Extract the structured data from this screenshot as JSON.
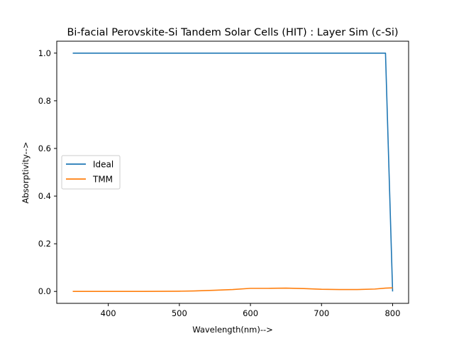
{
  "chart_data": {
    "type": "line",
    "title": "Bi-facial Perovskite-Si Tandem Solar Cells (HIT) : Layer Sim (c-Si)",
    "xlabel": "Wavelength(nm)-->",
    "ylabel": "Absorptivity-->",
    "xlim": [
      327.5,
      822.5
    ],
    "ylim": [
      -0.05,
      1.05
    ],
    "x_ticks": [
      400,
      500,
      600,
      700,
      800
    ],
    "x_tick_labels": [
      "400",
      "500",
      "600",
      "700",
      "800"
    ],
    "y_ticks": [
      0.0,
      0.2,
      0.4,
      0.6,
      0.8,
      1.0
    ],
    "y_tick_labels": [
      "0.0",
      "0.2",
      "0.4",
      "0.6",
      "0.8",
      "1.0"
    ],
    "grid": false,
    "legend_position": "center-left",
    "series": [
      {
        "name": "Ideal",
        "color": "#1f77b4",
        "x": [
          350,
          790,
          800
        ],
        "y": [
          1.0,
          1.0,
          0.0
        ]
      },
      {
        "name": "TMM",
        "color": "#ff7f0e",
        "x": [
          350,
          400,
          450,
          500,
          520,
          550,
          575,
          600,
          625,
          650,
          675,
          700,
          725,
          750,
          775,
          790,
          800
        ],
        "y": [
          0.0,
          0.0,
          0.0,
          0.001,
          0.002,
          0.005,
          0.008,
          0.013,
          0.013,
          0.014,
          0.012,
          0.009,
          0.008,
          0.008,
          0.01,
          0.014,
          0.015
        ]
      }
    ]
  }
}
